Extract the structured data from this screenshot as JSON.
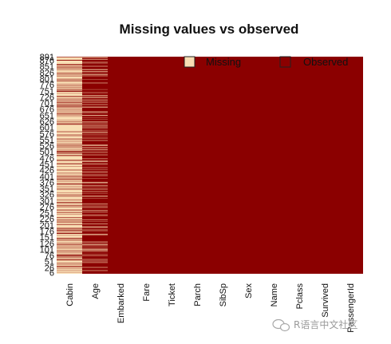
{
  "chart_data": {
    "type": "heatmap",
    "title": "Missing values vs observed",
    "columns": [
      "Cabin",
      "Age",
      "Embarked",
      "Fare",
      "Ticket",
      "Parch",
      "SibSp",
      "Sex",
      "Name",
      "Pclass",
      "Survived",
      "PassengerId"
    ],
    "row_count": 891,
    "row_tick_labels": [
      "891",
      "876",
      "851",
      "826",
      "801",
      "776",
      "751",
      "726",
      "701",
      "676",
      "651",
      "626",
      "601",
      "576",
      "551",
      "526",
      "501",
      "476",
      "451",
      "426",
      "401",
      "376",
      "351",
      "326",
      "301",
      "276",
      "251",
      "226",
      "201",
      "176",
      "151",
      "126",
      "101",
      "76",
      "51",
      "26",
      "6"
    ],
    "legend": {
      "position": "top-right",
      "items": [
        {
          "label": "Missing",
          "color": "#f8deb4"
        },
        {
          "label": "Observed",
          "color": "#8b0000"
        }
      ]
    },
    "missing_fraction": {
      "Cabin": 0.77,
      "Age": 0.2,
      "Embarked": 0.0,
      "Fare": 0.0,
      "Ticket": 0.0,
      "Parch": 0.0,
      "SibSp": 0.0,
      "Sex": 0.0,
      "Name": 0.0,
      "Pclass": 0.0,
      "Survived": 0.0,
      "PassengerId": 0.0
    },
    "colors": {
      "missing": "#f8deb4",
      "observed": "#8b0000"
    }
  },
  "watermark": {
    "text": "R语言中文社区",
    "icon": "wechat-icon"
  }
}
